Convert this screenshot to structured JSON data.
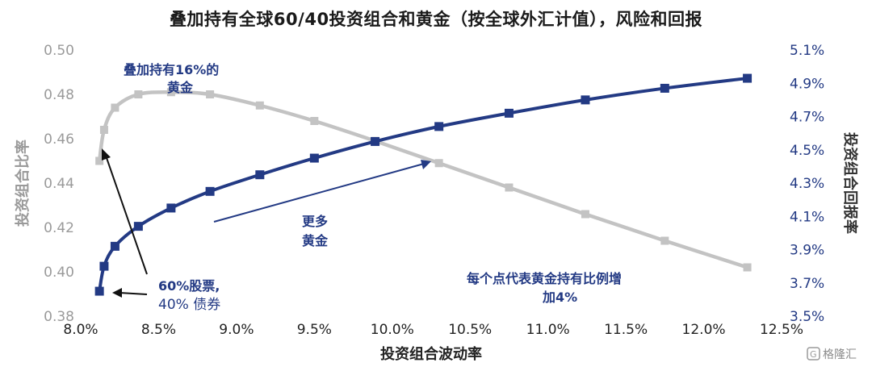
{
  "chart_data": {
    "type": "line",
    "title": "叠加持有全球60/40投资组合和黄金（按全球外汇计值），风险和回报",
    "xlabel": "投资组合波动率",
    "ylabel_left": "投资组合比率",
    "ylabel_right": "投资组合回报率",
    "x_ticks": [
      "8.0%",
      "8.5%",
      "9.0%",
      "9.5%",
      "10.0%",
      "10.5%",
      "11.0%",
      "11.5%",
      "12.0%",
      "12.5%"
    ],
    "y_left_ticks": [
      "0.38",
      "0.40",
      "0.42",
      "0.44",
      "0.46",
      "0.48",
      "0.50"
    ],
    "y_right_ticks": [
      "3.5%",
      "3.7%",
      "3.9%",
      "4.1%",
      "4.3%",
      "4.5%",
      "4.7%",
      "4.9%",
      "5.1%"
    ],
    "xlim": [
      8.0,
      12.5
    ],
    "ylim_left": [
      0.38,
      0.5
    ],
    "ylim_right": [
      3.5,
      5.1
    ],
    "grid": false,
    "series": [
      {
        "color": "#233a84",
        "axis": "right",
        "marker": "square",
        "points": [
          [
            8.12,
            3.65
          ],
          [
            8.15,
            3.8
          ],
          [
            8.22,
            3.92
          ],
          [
            8.37,
            4.04
          ],
          [
            8.58,
            4.15
          ],
          [
            8.83,
            4.25
          ],
          [
            9.15,
            4.35
          ],
          [
            9.5,
            4.45
          ],
          [
            9.89,
            4.55
          ],
          [
            10.3,
            4.64
          ],
          [
            10.75,
            4.72
          ],
          [
            11.24,
            4.8
          ],
          [
            11.75,
            4.87
          ],
          [
            12.28,
            4.93
          ]
        ]
      },
      {
        "color": "#c3c3c3",
        "axis": "left",
        "marker": "square",
        "points": [
          [
            8.12,
            0.45
          ],
          [
            8.15,
            0.464
          ],
          [
            8.22,
            0.474
          ],
          [
            8.37,
            0.48
          ],
          [
            8.58,
            0.481
          ],
          [
            8.83,
            0.48
          ],
          [
            9.15,
            0.475
          ],
          [
            9.5,
            0.468
          ],
          [
            9.89,
            0.459
          ],
          [
            10.3,
            0.449
          ],
          [
            10.75,
            0.438
          ],
          [
            11.24,
            0.426
          ],
          [
            11.75,
            0.414
          ],
          [
            12.28,
            0.402
          ]
        ]
      }
    ],
    "annotations": {
      "gold16_line1": "叠加持有16%的",
      "gold16_line2": "黄金",
      "more_gold_line1": "更多",
      "more_gold_line2": "黄金",
      "portfolio_line1": "60%股票,",
      "portfolio_line2": "40% 债券",
      "step_line1": "每个点代表黄金持有比例增",
      "step_line2": "加4%"
    }
  },
  "colors": {
    "blue": "#233a84",
    "gray": "#c3c3c3",
    "gray_text": "#9a9a9a"
  },
  "watermark": "格隆汇",
  "watermark_icon": "G-logo-icon"
}
